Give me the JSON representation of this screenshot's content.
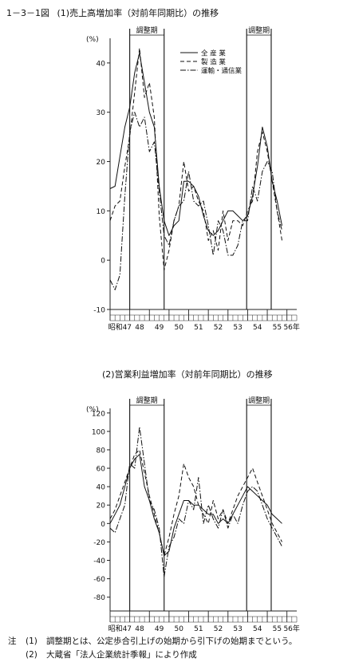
{
  "figure_title": "1－3－1図",
  "notes": {
    "prefix": "注",
    "items": [
      {
        "num": "(1)",
        "text": "調整期とは、公定歩合引上げの始期から引下げの始期までという。"
      },
      {
        "num": "(2)",
        "text": "大蔵省「法人企業統計季報」により作成"
      }
    ]
  },
  "chart_data": [
    {
      "type": "line",
      "title": "(1)売上高増加率（対前年同期比）の推移",
      "ylabel": "(%)",
      "ylim": [
        -10,
        45
      ],
      "yticks": [
        -10,
        0,
        10,
        20,
        30,
        40
      ],
      "xlim": [
        47,
        56.5
      ],
      "xticks": [
        {
          "value": 47,
          "label": "昭和47"
        },
        {
          "value": 48,
          "label": "48"
        },
        {
          "value": 49,
          "label": "49"
        },
        {
          "value": 50,
          "label": "50"
        },
        {
          "value": 51,
          "label": "51"
        },
        {
          "value": 52,
          "label": "52"
        },
        {
          "value": 53,
          "label": "53"
        },
        {
          "value": 54,
          "label": "54"
        },
        {
          "value": 55,
          "label": "55"
        },
        {
          "value": 56,
          "label": "56年"
        }
      ],
      "adjustment_periods": [
        {
          "label": "調整期",
          "start": 48.0,
          "end": 49.75
        },
        {
          "label": "調整期",
          "start": 53.95,
          "end": 55.2
        }
      ],
      "series": [
        {
          "name": "全 産 業",
          "style": "solid",
          "x": [
            47.0,
            47.25,
            47.5,
            47.75,
            48.0,
            48.25,
            48.5,
            48.75,
            49.0,
            49.25,
            49.5,
            49.75,
            50.0,
            50.25,
            50.5,
            50.75,
            51.0,
            51.25,
            51.5,
            51.75,
            52.0,
            52.25,
            52.5,
            52.75,
            53.0,
            53.25,
            53.5,
            53.75,
            54.0,
            54.25,
            54.5,
            54.75,
            55.0,
            55.25,
            55.5,
            55.75
          ],
          "y": [
            14.5,
            15,
            21,
            27,
            31,
            38,
            42,
            36,
            30,
            27,
            15,
            8,
            5,
            7,
            8,
            16,
            16,
            15,
            13,
            9,
            6,
            5,
            6,
            8,
            10,
            10,
            9,
            8,
            9,
            13,
            19,
            27,
            23,
            16,
            12,
            7
          ]
        },
        {
          "name": "製 造 業",
          "style": "dashed",
          "x": [
            47.0,
            47.25,
            47.5,
            47.75,
            48.0,
            48.25,
            48.5,
            48.75,
            49.0,
            49.25,
            49.5,
            49.75,
            50.0,
            50.25,
            50.5,
            50.75,
            51.0,
            51.25,
            51.5,
            51.75,
            52.0,
            52.25,
            52.5,
            52.75,
            53.0,
            53.25,
            53.5,
            53.75,
            54.0,
            54.25,
            54.5,
            54.75,
            55.0,
            55.25,
            55.5,
            55.75
          ],
          "y": [
            8,
            11,
            12,
            19,
            25,
            34,
            43,
            33,
            36,
            29,
            9,
            -2,
            2,
            8,
            11,
            20,
            14,
            15,
            12,
            10,
            4,
            6,
            2,
            10,
            4,
            8,
            8,
            7,
            10,
            12,
            22,
            26,
            22,
            16,
            10,
            4
          ]
        },
        {
          "name": "運輸・通信業",
          "style": "dashdot",
          "x": [
            47.0,
            47.25,
            47.5,
            47.75,
            48.0,
            48.25,
            48.5,
            48.75,
            49.0,
            49.25,
            49.5,
            49.75,
            50.0,
            50.25,
            50.5,
            50.75,
            51.0,
            51.25,
            51.5,
            51.75,
            52.0,
            52.25,
            52.5,
            52.75,
            53.0,
            53.25,
            53.5,
            53.75,
            54.0,
            54.25,
            54.5,
            54.75,
            55.0,
            55.25,
            55.5,
            55.75
          ],
          "y": [
            -4,
            -6,
            -3,
            13,
            26,
            30,
            27,
            29,
            22,
            24,
            14,
            5,
            3,
            8,
            11,
            12,
            18,
            12,
            11,
            12,
            7,
            1,
            8,
            6,
            1,
            1,
            3,
            8,
            8,
            15,
            12,
            18,
            20,
            18,
            10,
            6
          ]
        }
      ]
    },
    {
      "type": "line",
      "title": "(2)営業利益増加率（対前年同期比）の推移",
      "ylabel": "(%)",
      "ylim": [
        -95,
        125
      ],
      "yticks": [
        -80,
        -60,
        -40,
        -20,
        0,
        20,
        40,
        60,
        80,
        100,
        120
      ],
      "xlim": [
        47,
        56.5
      ],
      "xticks": [
        {
          "value": 47,
          "label": "昭和47"
        },
        {
          "value": 48,
          "label": "48"
        },
        {
          "value": 49,
          "label": "49"
        },
        {
          "value": 50,
          "label": "50"
        },
        {
          "value": 51,
          "label": "51"
        },
        {
          "value": 52,
          "label": "52"
        },
        {
          "value": 53,
          "label": "53"
        },
        {
          "value": 54,
          "label": "54"
        },
        {
          "value": 55,
          "label": "55"
        },
        {
          "value": 56,
          "label": "56年"
        }
      ],
      "adjustment_periods": [
        {
          "label": "調整期",
          "start": 48.0,
          "end": 49.75
        },
        {
          "label": "調整期",
          "start": 53.95,
          "end": 55.2
        }
      ],
      "series": [
        {
          "name": "全 産 業",
          "style": "solid",
          "x": [
            47.0,
            47.25,
            47.5,
            47.75,
            48.0,
            48.25,
            48.5,
            48.75,
            49.0,
            49.25,
            49.5,
            49.75,
            50.0,
            50.25,
            50.5,
            50.75,
            51.0,
            51.25,
            51.5,
            51.75,
            52.0,
            52.25,
            52.5,
            52.75,
            53.0,
            53.25,
            53.5,
            53.75,
            54.0,
            54.25,
            54.5,
            54.75,
            55.0,
            55.25,
            55.5,
            55.75
          ],
          "y": [
            0,
            10,
            20,
            40,
            60,
            70,
            75,
            40,
            25,
            5,
            -10,
            -35,
            -30,
            -5,
            10,
            25,
            25,
            20,
            20,
            15,
            10,
            10,
            0,
            5,
            0,
            10,
            20,
            30,
            40,
            35,
            30,
            25,
            20,
            10,
            5,
            0
          ]
        },
        {
          "name": "製 造 業",
          "style": "dashed",
          "x": [
            47.0,
            47.25,
            47.5,
            47.75,
            48.0,
            48.25,
            48.5,
            48.75,
            49.0,
            49.25,
            49.5,
            49.75,
            50.0,
            50.25,
            50.5,
            50.75,
            51.0,
            51.25,
            51.5,
            51.75,
            52.0,
            52.25,
            52.5,
            52.75,
            53.0,
            53.25,
            53.5,
            53.75,
            54.0,
            54.25,
            54.5,
            54.75,
            55.0,
            55.25,
            55.5,
            55.75
          ],
          "y": [
            5,
            15,
            30,
            45,
            60,
            75,
            80,
            55,
            30,
            10,
            -10,
            -35,
            -15,
            10,
            30,
            65,
            50,
            40,
            20,
            10,
            0,
            25,
            5,
            15,
            0,
            15,
            30,
            40,
            50,
            60,
            45,
            30,
            15,
            0,
            -10,
            -20
          ]
        },
        {
          "name": "運輸・通信業",
          "style": "dashdot",
          "x": [
            47.0,
            47.25,
            47.5,
            47.75,
            48.0,
            48.25,
            48.5,
            48.75,
            49.0,
            49.25,
            49.5,
            49.75,
            50.0,
            50.25,
            50.5,
            50.75,
            51.0,
            51.25,
            51.5,
            51.75,
            52.0,
            52.25,
            52.5,
            52.75,
            53.0,
            53.25,
            53.5,
            53.75,
            54.0,
            54.25,
            54.5,
            54.75,
            55.0,
            55.25,
            55.5,
            55.75
          ],
          "y": [
            -5,
            -10,
            5,
            20,
            65,
            60,
            105,
            65,
            25,
            15,
            -5,
            -58,
            -25,
            -15,
            5,
            0,
            25,
            15,
            50,
            0,
            20,
            5,
            -5,
            15,
            -5,
            10,
            0,
            20,
            35,
            40,
            35,
            20,
            5,
            -5,
            -15,
            -25
          ]
        }
      ]
    }
  ]
}
